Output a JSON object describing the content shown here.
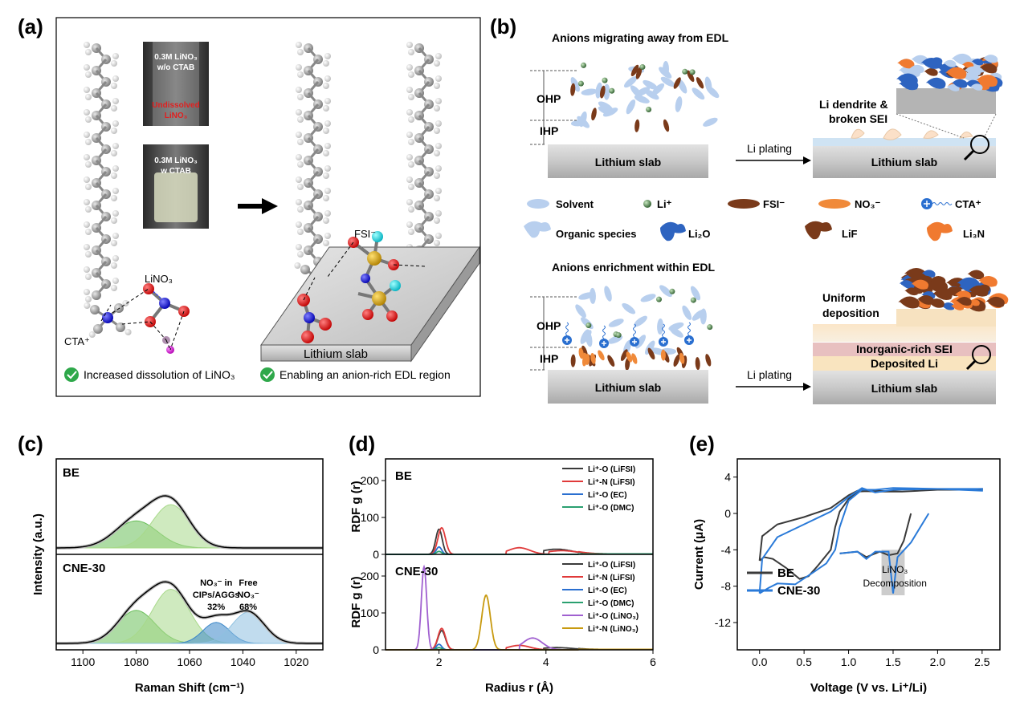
{
  "panels": {
    "a": {
      "letter": "(a)",
      "vial1": {
        "line1": "0.3M LiNO₃",
        "line2": "w/o CTAB",
        "note1": "Undissolved",
        "note2": "LiNO₃"
      },
      "vial2": {
        "line1": "0.3M LiNO₃",
        "line2": "w CTAB"
      },
      "label_lino3": "LiNO₃",
      "label_cta": "CTA⁺",
      "label_fsi": "FSI⁻",
      "slab": "Lithium slab",
      "check1": "Increased dissolution of LiNO₃",
      "check2": "Enabling an anion-rich EDL region"
    },
    "b": {
      "letter": "(b)",
      "top_title": "Anions migrating away from EDL",
      "bottom_title": "Anions enrichment within EDL",
      "ohp": "OHP",
      "ihp": "IHP",
      "slab": "Lithium slab",
      "plating": "Li plating",
      "dendrite1": "Li dendrite &",
      "dendrite2": "broken SEI",
      "uniform1": "Uniform",
      "uniform2": "deposition",
      "sei": "Inorganic-rich SEI",
      "deposited": "Deposited Li",
      "legend": {
        "solvent": "Solvent",
        "li": "Li⁺",
        "fsi": "FSI⁻",
        "no3": "NO₃⁻",
        "cta": "CTA⁺",
        "organic": "Organic species",
        "li2o": "Li₂O",
        "lif": "LiF",
        "li3n": "Li₃N"
      },
      "colors": {
        "solvent": "#b8cfee",
        "fsi": "#7a3a1a",
        "no3": "#f08a3a",
        "li2o": "#2e64c0",
        "lif": "#7a3a1a",
        "li3n": "#f07a30"
      }
    }
  },
  "chart_data": [
    {
      "type": "line",
      "panel": "(c)",
      "xlabel": "Raman Shift (cm⁻¹)",
      "ylabel": "Intensity (a.u.)",
      "xlim": [
        1110,
        1010
      ],
      "xticks": [
        1100,
        1080,
        1060,
        1040,
        1020
      ],
      "subplots": [
        {
          "name": "BE",
          "peaks": [
            {
              "center": 1080,
              "width": 8,
              "height": 0.45,
              "color": "#6abf5a"
            },
            {
              "center": 1067,
              "width": 7,
              "height": 0.72,
              "color": "#a8d98a"
            }
          ]
        },
        {
          "name": "CNE-30",
          "peaks": [
            {
              "center": 1080,
              "width": 7,
              "height": 0.55,
              "color": "#6abf5a"
            },
            {
              "center": 1067,
              "width": 7,
              "height": 0.9,
              "color": "#a8d98a"
            },
            {
              "center": 1050,
              "width": 5,
              "height": 0.35,
              "color": "#3a86c8"
            },
            {
              "center": 1038,
              "width": 6,
              "height": 0.52,
              "color": "#8ec0e0"
            }
          ],
          "annotations": [
            {
              "l1": "NO₃⁻ in",
              "l2": "CIPs/AGGs",
              "l3": "32%"
            },
            {
              "l1": "Free",
              "l2": "NO₃⁻",
              "l3": "68%"
            }
          ]
        }
      ]
    },
    {
      "type": "line",
      "panel": "(d)",
      "xlabel": "Radius r (Å)",
      "ylabel": "RDF g (r)",
      "xlim": [
        1,
        6
      ],
      "xticks": [
        2,
        4,
        6
      ],
      "ylim": [
        0,
        250
      ],
      "yticks": [
        0,
        100,
        200
      ],
      "subplots": [
        {
          "name": "BE",
          "series": [
            {
              "name": "Li⁺-O (LiFSI)",
              "color": "#3a3a3a",
              "peaks": [
                [
                  2.0,
                  0.06,
                  68
                ],
                [
                  4.2,
                  0.3,
                  14
                ]
              ]
            },
            {
              "name": "Li⁺-N (LiFSI)",
              "color": "#e03a3a",
              "peaks": [
                [
                  2.05,
                  0.07,
                  72
                ],
                [
                  3.5,
                  0.2,
                  18
                ],
                [
                  4.3,
                  0.3,
                  10
                ]
              ]
            },
            {
              "name": "Li⁺-O (EC)",
              "color": "#2a6fd0",
              "peaks": [
                [
                  2.0,
                  0.05,
                  20
                ]
              ]
            },
            {
              "name": "Li⁺-O (DMC)",
              "color": "#2aa070",
              "peaks": [
                [
                  2.0,
                  0.05,
                  8
                ]
              ]
            }
          ]
        },
        {
          "name": "CNE-30",
          "series": [
            {
              "name": "Li⁺-O (LiFSI)",
              "color": "#3a3a3a",
              "peaks": [
                [
                  2.05,
                  0.07,
                  52
                ],
                [
                  4.2,
                  0.3,
                  6
                ]
              ]
            },
            {
              "name": "Li⁺-N (LiFSI)",
              "color": "#e03a3a",
              "peaks": [
                [
                  2.05,
                  0.07,
                  58
                ],
                [
                  3.5,
                  0.2,
                  12
                ]
              ]
            },
            {
              "name": "Li⁺-O (EC)",
              "color": "#2a6fd0",
              "peaks": [
                [
                  2.0,
                  0.05,
                  15
                ]
              ]
            },
            {
              "name": "Li⁺-O (DMC)",
              "color": "#2aa070",
              "peaks": [
                [
                  2.0,
                  0.05,
                  6
                ]
              ]
            },
            {
              "name": "Li⁺-O (LiNO₃)",
              "color": "#a060d0",
              "peaks": [
                [
                  1.72,
                  0.05,
                  225
                ],
                [
                  3.75,
                  0.18,
                  32
                ]
              ]
            },
            {
              "name": "Li⁺-N (LiNO₃)",
              "color": "#c89a10",
              "peaks": [
                [
                  2.88,
                  0.08,
                  148
                ]
              ]
            }
          ]
        }
      ]
    },
    {
      "type": "line",
      "panel": "(e)",
      "xlabel": "Voltage (V vs. Li⁺/Li)",
      "ylabel": "Current (μA)",
      "xlim": [
        -0.25,
        2.7
      ],
      "xticks": [
        0.0,
        0.5,
        1.0,
        1.5,
        2.0,
        2.5
      ],
      "ylim": [
        -15,
        6
      ],
      "yticks": [
        4,
        0,
        -4,
        -8,
        -12
      ],
      "series": [
        {
          "name": "BE",
          "color": "#3a3a3a",
          "x": [
            0,
            0.05,
            0.2,
            0.5,
            0.8,
            1.0,
            1.2,
            1.5,
            2.0,
            2.5,
            2.5,
            2.0,
            1.5,
            1.2,
            1.0,
            0.9,
            0.8,
            0.6,
            0.5,
            0.4,
            0.2,
            0.05,
            0,
            0,
            1.7,
            1.6,
            1.55
          ],
          "y": [
            -5.2,
            -2.5,
            -1.3,
            -0.4,
            0.5,
            2.0,
            2.5,
            2.4,
            2.6,
            2.7,
            2.7,
            2.6,
            2.4,
            2.5,
            2.3,
            0.5,
            -4.2,
            -6.5,
            -7.2,
            -6.8,
            -5.0,
            -4.8,
            -5.2,
            -5.2,
            0.0,
            -2.8,
            -4.3
          ]
        },
        {
          "name": "CNE-30",
          "color": "#2a7ad8",
          "x": [
            0,
            0.1,
            0.3,
            0.6,
            0.9,
            1.1,
            1.3,
            1.5,
            2.0,
            2.5
          ],
          "y": [
            -8.0,
            -4.5,
            -2.0,
            -0.5,
            1.0,
            2.5,
            2.2,
            2.6,
            2.8,
            2.5
          ]
        }
      ],
      "legend": [
        "BE",
        "CNE-30"
      ],
      "annotation": {
        "l1": "LiNO₃",
        "l2": "Decomposition"
      }
    }
  ]
}
